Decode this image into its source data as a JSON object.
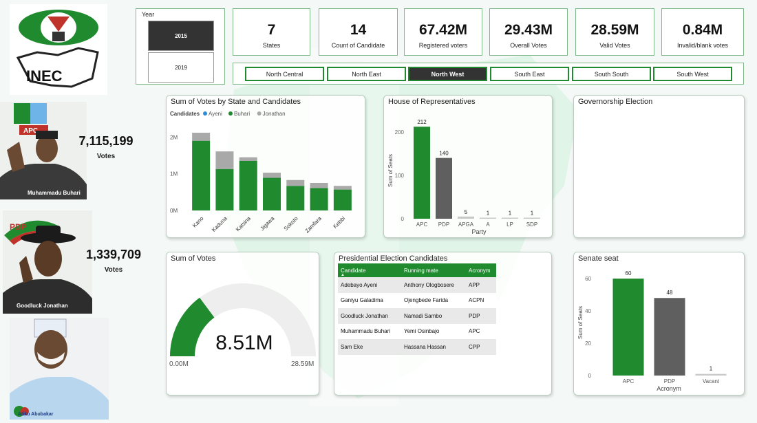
{
  "year_slicer": {
    "title": "Year",
    "options": [
      "2015",
      "2019"
    ],
    "selected": "2015"
  },
  "kpis": [
    {
      "value": "7",
      "label": "States"
    },
    {
      "value": "14",
      "label": "Count of Candidate"
    },
    {
      "value": "67.42M",
      "label": "Registered voters"
    },
    {
      "value": "29.43M",
      "label": "Overall Votes"
    },
    {
      "value": "28.59M",
      "label": "Valid Votes"
    },
    {
      "value": "0.84M",
      "label": "Invalid/blank votes"
    }
  ],
  "regions": {
    "options": [
      "North Central",
      "North East",
      "North West",
      "South East",
      "South South",
      "South West"
    ],
    "selected": "North West"
  },
  "logo": {
    "text": "INEC"
  },
  "candidates_side": [
    {
      "party": "APC",
      "name": "Muhammadu Buhari",
      "votes": "7,115,199",
      "votes_label": "Votes"
    },
    {
      "party": "PDP",
      "name": "Goodluck Jonathan",
      "votes": "1,339,709",
      "votes_label": "Votes"
    },
    {
      "name": "Atiku Abubakar"
    }
  ],
  "colors": {
    "accent_green": "#1f8a2e",
    "grey_bar": "#5f5f5f",
    "light_grey": "#a9a9a9",
    "ayeni_blue": "#2e8bd6"
  },
  "gauge": {
    "title": "Sum of Votes",
    "value_label": "8.51M",
    "min_label": "0.00M",
    "max_label": "28.59M",
    "value": 8.51,
    "min": 0,
    "max": 28.59
  },
  "governorship": {
    "title": "Governorship Election"
  },
  "candidate_table": {
    "title": "Presidential Election Candidates",
    "headers": [
      "Candidate",
      "Running mate",
      "Acronym"
    ],
    "rows": [
      [
        "Adebayo Ayeni",
        "Anthony Ologbosere",
        "APP"
      ],
      [
        "Ganiyu Galadima",
        "Ojengbede Farida",
        "ACPN"
      ],
      [
        "Goodluck Jonathan",
        "Namadi Sambo",
        "PDP"
      ],
      [
        "Muhammadu Buhari",
        "Yemi Osinbajo",
        "APC"
      ],
      [
        "Sam Eke",
        "Hassana Hassan",
        "CPP"
      ]
    ]
  },
  "chart_data": [
    {
      "type": "bar",
      "stacked": true,
      "title": "Sum of Votes by State and Candidates",
      "legend_title": "Candidates",
      "legend_position": "top-left",
      "categories": [
        "Kano",
        "Kaduna",
        "Katsina",
        "Jigawa",
        "Sokoto",
        "Zamfara",
        "Kebbi"
      ],
      "series": [
        {
          "name": "Ayeni",
          "values": [
            0,
            0,
            0,
            0,
            0,
            0,
            0
          ]
        },
        {
          "name": "Buhari",
          "values": [
            1.9,
            1.13,
            1.35,
            0.89,
            0.67,
            0.61,
            0.57
          ]
        },
        {
          "name": "Jonathan",
          "values": [
            0.22,
            0.48,
            0.1,
            0.14,
            0.16,
            0.14,
            0.1
          ]
        }
      ],
      "y_ticks": [
        "0M",
        "1M",
        "2M"
      ],
      "ylim": [
        0,
        2.1
      ]
    },
    {
      "type": "bar",
      "title": "House of Representatives",
      "xlabel": "Party",
      "ylabel": "Sum of Seats",
      "categories": [
        "APC",
        "PDP",
        "APGA",
        "A",
        "LP",
        "SDP"
      ],
      "values": [
        212,
        140,
        5,
        1,
        1,
        1
      ],
      "y_ticks": [
        0,
        100,
        200
      ],
      "ylim": [
        0,
        225
      ]
    },
    {
      "type": "bar",
      "title": "Senate seat",
      "xlabel": "Acronym",
      "ylabel": "Sum of Seats",
      "categories": [
        "APC",
        "PDP",
        "Vacant"
      ],
      "values": [
        60,
        48,
        1
      ],
      "y_ticks": [
        0,
        20,
        40,
        60
      ],
      "ylim": [
        0,
        63
      ]
    }
  ]
}
